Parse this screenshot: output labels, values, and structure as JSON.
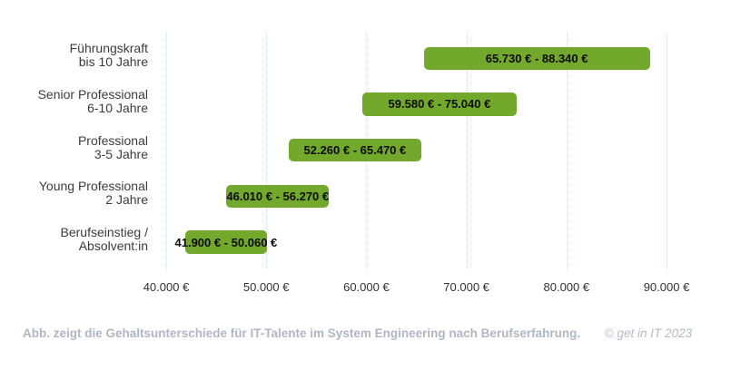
{
  "chart_data": {
    "type": "bar",
    "subtype": "horizontal-range-bars",
    "title": "",
    "xlabel": "",
    "ylabel": "",
    "unit": "EUR",
    "axis": {
      "min": 40000,
      "max": 90000
    },
    "grid": "vertical-dotted",
    "legend": "none",
    "x_ticks": [
      {
        "value": 40000,
        "label": "40.000 €"
      },
      {
        "value": 50000,
        "label": "50.000 €"
      },
      {
        "value": 60000,
        "label": "60.000 €"
      },
      {
        "value": 70000,
        "label": "70.000 €"
      },
      {
        "value": 80000,
        "label": "80.000 €"
      },
      {
        "value": 90000,
        "label": "90.000 €"
      }
    ],
    "rows": [
      {
        "label_lines": [
          "Führungskraft",
          "bis 10 Jahre"
        ],
        "min": 65730,
        "max": 88340,
        "range_label": "65.730 €  -  88.340 €"
      },
      {
        "label_lines": [
          "Senior Professional",
          "6-10 Jahre"
        ],
        "min": 59580,
        "max": 75040,
        "range_label": "59.580 €  - 75.040 €"
      },
      {
        "label_lines": [
          "Professional",
          "3-5 Jahre"
        ],
        "min": 52260,
        "max": 65470,
        "range_label": "52.260 €  -  65.470 €"
      },
      {
        "label_lines": [
          "Young Professional",
          "2 Jahre"
        ],
        "min": 46010,
        "max": 56270,
        "range_label": "46.010 €  -  56.270 €"
      },
      {
        "label_lines": [
          "Berufseinstieg /",
          "Absolvent:in"
        ],
        "min": 41900,
        "max": 50060,
        "range_label": "41.900 € -  50.060 €"
      }
    ],
    "colors": {
      "bar": "#72a82b",
      "gridline": "#c3e0f0",
      "bar_text": "#0c0c0c",
      "axis_text": "#333333",
      "category_text": "#3c3c3c",
      "footer_text": "#b0b7c2"
    }
  },
  "footer": {
    "caption": "Abb. zeigt die Gehaltsunterschiede für IT-Talente im System Engineering nach Berufserfahrung.",
    "copyright": "© get in IT 2023"
  }
}
